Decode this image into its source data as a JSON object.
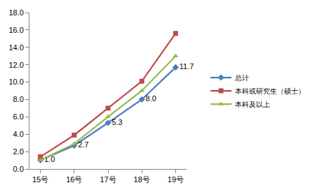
{
  "chart_data": {
    "type": "line",
    "categories": [
      "15号",
      "16号",
      "17号",
      "18号",
      "19号"
    ],
    "series": [
      {
        "name": "总计",
        "color": "#4a7ebb",
        "marker": "diamond",
        "values": [
          1.0,
          2.7,
          5.3,
          8.0,
          11.7
        ],
        "data_labels": true,
        "value_labels": [
          "1.0",
          "2.7",
          "5.3",
          "8.0",
          "11.7"
        ]
      },
      {
        "name": "本科或研究生（硕士）",
        "color": "#be4b48",
        "marker": "square",
        "values": [
          1.4,
          3.9,
          7.0,
          10.1,
          15.6
        ]
      },
      {
        "name": "本科及以上",
        "color": "#98b954",
        "marker": "triangle",
        "values": [
          1.0,
          2.9,
          6.0,
          9.0,
          13.0
        ]
      }
    ],
    "ylim": [
      0,
      18
    ],
    "yticks": [
      {
        "value": 0,
        "label": "0.0"
      },
      {
        "value": 2,
        "label": "2.0"
      },
      {
        "value": 4,
        "label": "4.0"
      },
      {
        "value": 6,
        "label": "6.0"
      },
      {
        "value": 8,
        "label": "8.0"
      },
      {
        "value": 10,
        "label": "10.0"
      },
      {
        "value": 12,
        "label": "12.0"
      },
      {
        "value": 14,
        "label": "14.0"
      },
      {
        "value": 16,
        "label": "16.0"
      },
      {
        "value": 18,
        "label": "18.0"
      }
    ],
    "grid": false,
    "legend": "right"
  }
}
